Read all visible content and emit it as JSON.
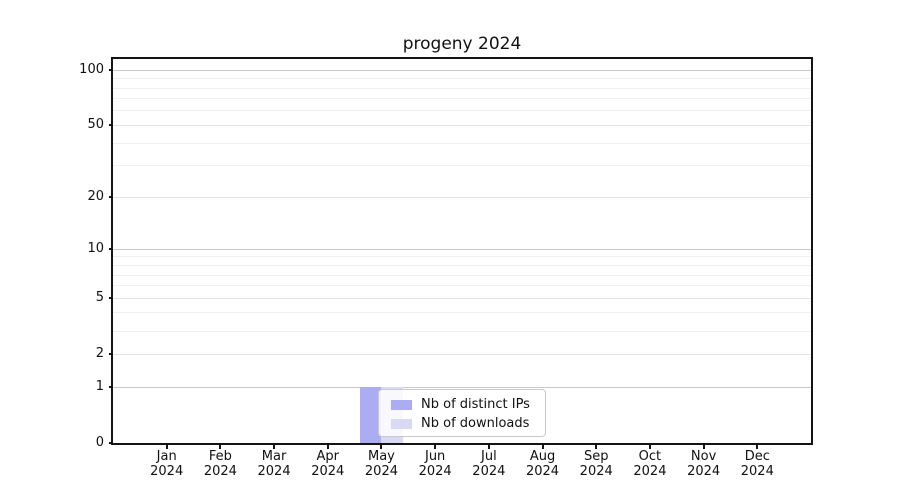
{
  "chart_data": {
    "type": "bar",
    "title": "progeny 2024",
    "months": [
      "Jan",
      "Feb",
      "Mar",
      "Apr",
      "May",
      "Jun",
      "Jul",
      "Aug",
      "Sep",
      "Oct",
      "Nov",
      "Dec"
    ],
    "year": "2024",
    "series": [
      {
        "name": "Nb of distinct IPs",
        "color": "#acacf2",
        "values": [
          0,
          0,
          0,
          0,
          1,
          0,
          0,
          0,
          0,
          0,
          0,
          0
        ]
      },
      {
        "name": "Nb of downloads",
        "color": "#d9d9f4",
        "values": [
          0,
          0,
          0,
          0,
          1,
          0,
          0,
          0,
          0,
          0,
          0,
          0
        ]
      }
    ],
    "y_axis": {
      "scale": "log1p",
      "major_ticks": [
        0,
        1,
        2,
        5,
        10,
        20,
        50,
        100
      ],
      "decade_ticks": [
        1,
        10,
        100
      ],
      "minor_ticks": [
        3,
        4,
        6,
        7,
        8,
        9,
        30,
        40,
        60,
        70,
        80,
        90
      ],
      "ylim": [
        0,
        115
      ]
    },
    "grid": {
      "enabled": true,
      "decade_color": "#c9c9cb",
      "mid_color": "#e4e4e6",
      "minor_color": "#f0f0f1"
    },
    "legend": {
      "position": "lower center",
      "entries": [
        "Nb of distinct IPs",
        "Nb of downloads"
      ]
    },
    "colors": {
      "spine": "#141414",
      "text": "#111111",
      "background": "#ffffff"
    }
  }
}
